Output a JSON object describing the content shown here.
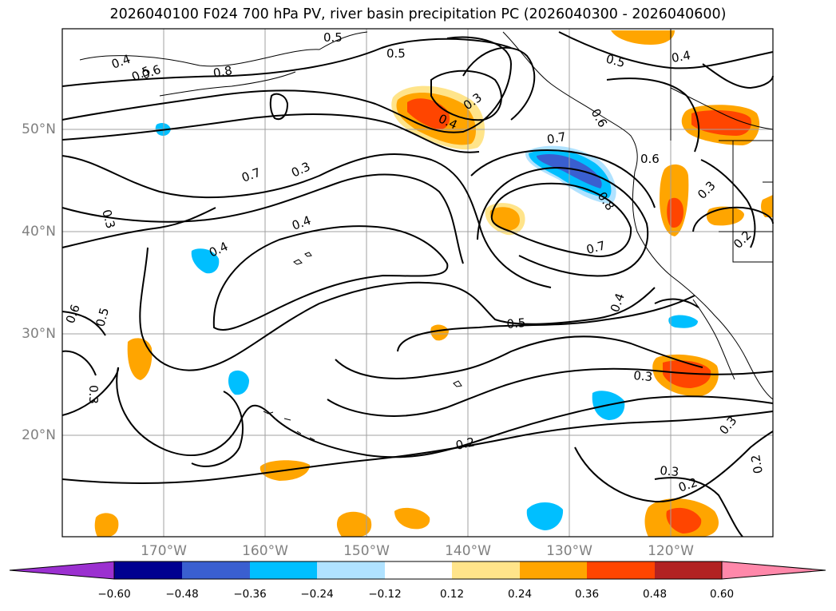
{
  "title": "2026040100 F024 700 hPa PV, river basin precipitation PC (2026040300 - 2026040600)",
  "map": {
    "region": "North Pacific / western North America",
    "projection": "cylindrical",
    "lon_range": [
      180,
      110
    ],
    "lat_range": [
      10,
      60
    ],
    "lat_ticks": [
      "20°N",
      "30°N",
      "40°N",
      "50°N"
    ],
    "lon_ticks": [
      "170°W",
      "160°W",
      "150°W",
      "140°W",
      "130°W",
      "120°W"
    ],
    "contour_labels": [
      "0.4",
      "0.5",
      "0.6",
      "0.8",
      "0.5",
      "0.5",
      "0.5",
      "0.4",
      "0.3",
      "0.4",
      "0.7",
      "0.6",
      "0.6",
      "0.7",
      "0.3",
      "0.4",
      "0.4",
      "0.3",
      "0.8",
      "0.7",
      "0.4",
      "0.5",
      "0.6",
      "0.5",
      "0.3",
      "0.3",
      "0.2",
      "0.3",
      "0.3",
      "0.2",
      "0.2",
      "0.2",
      "0.3"
    ],
    "contour_color": "#000000",
    "gridline_color": "#a0a0a0",
    "coastline_color": "#000000"
  },
  "colorbar": {
    "ticks": [
      "−0.60",
      "−0.48",
      "−0.36",
      "−0.24",
      "−0.12",
      "0.12",
      "0.24",
      "0.36",
      "0.48",
      "0.60"
    ],
    "colors": [
      "#9b30d0",
      "#000090",
      "#3a5fd0",
      "#00bfff",
      "#b0e2ff",
      "#ffffff",
      "#ffe48a",
      "#ffa500",
      "#ff4500",
      "#b22222",
      "#ff88aa"
    ]
  }
}
